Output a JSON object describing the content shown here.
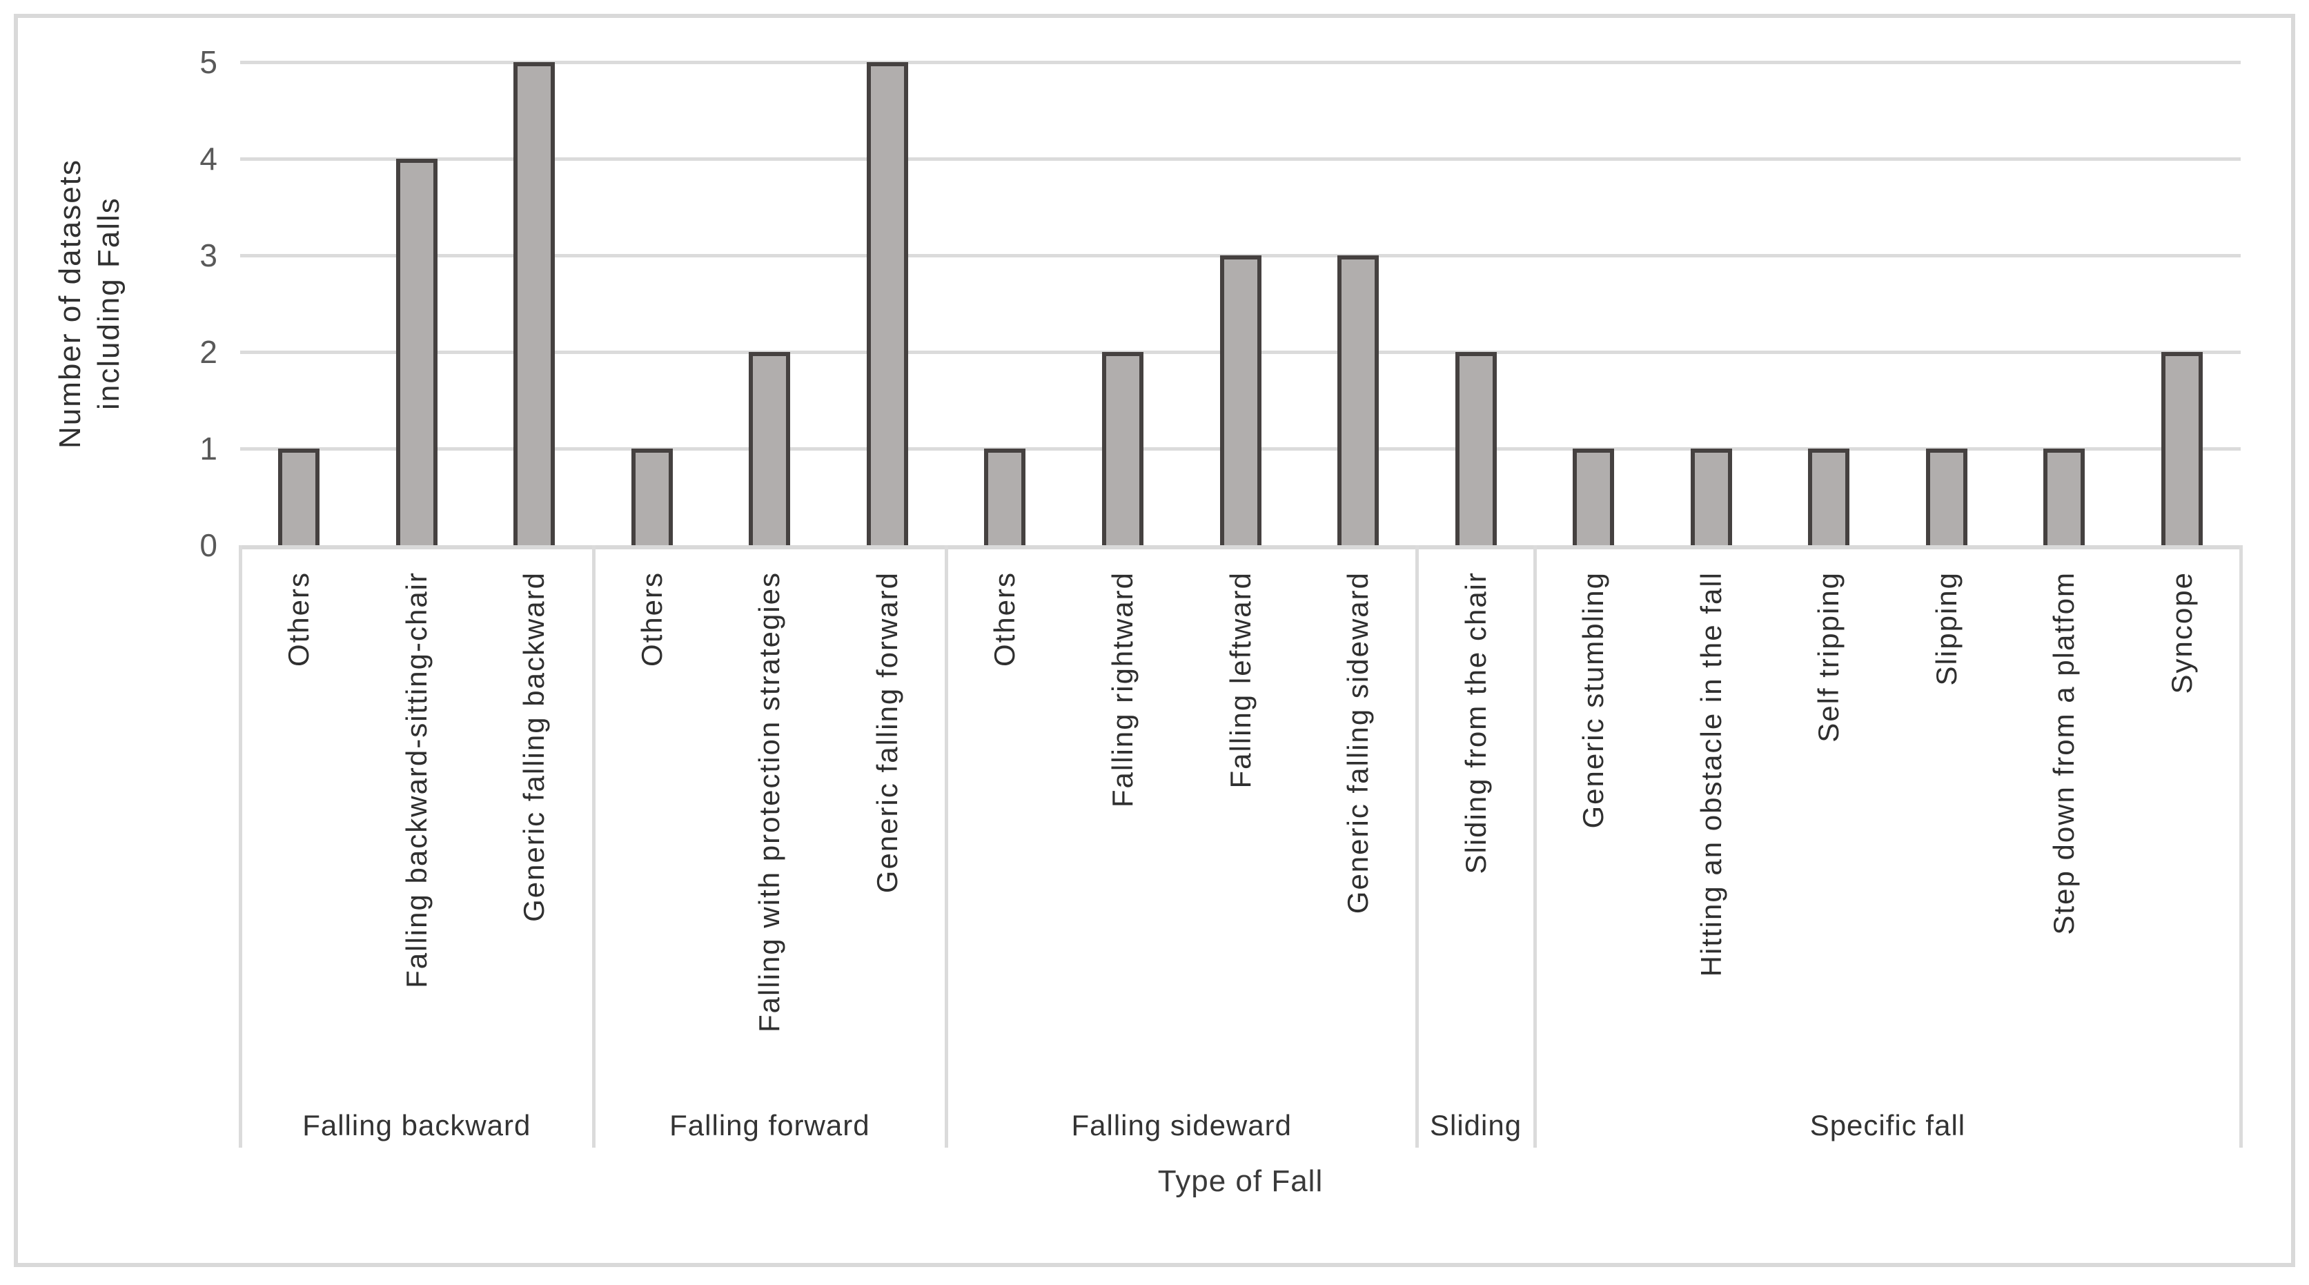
{
  "figure": {
    "background": "#FFFFFF",
    "frame_color": "#D9D9D9"
  },
  "chart_data": {
    "type": "bar",
    "title": "",
    "xlabel": "Type of Fall",
    "ylabel_lines": [
      "Number of datasets",
      "including Falls"
    ],
    "ylim": [
      0,
      5
    ],
    "yticks": [
      "0",
      "1",
      "2",
      "3",
      "4",
      "5"
    ],
    "grid": true,
    "legend": "none",
    "bar_fill": "#B1AEAD",
    "bar_border": "#454140",
    "gridline_color": "#DBDBDB",
    "tick_label_color": "#595959",
    "text_color": "#2F2F2F",
    "groups": [
      {
        "label": "Falling backward",
        "categories": [
          "Others",
          "Falling backward-sitting-chair",
          "Generic falling backward"
        ],
        "values": [
          1,
          4,
          5
        ]
      },
      {
        "label": "Falling forward",
        "categories": [
          "Others",
          "Falling with protection strategies",
          "Generic falling forward"
        ],
        "values": [
          1,
          2,
          5
        ]
      },
      {
        "label": "Falling sideward",
        "categories": [
          "Others",
          "Falling rightward",
          "Falling leftward",
          "Generic falling sideward"
        ],
        "values": [
          1,
          2,
          3,
          3
        ]
      },
      {
        "label": "Sliding",
        "categories": [
          "Sliding from the chair"
        ],
        "values": [
          2
        ]
      },
      {
        "label": "Specific fall",
        "categories": [
          "Generic stumbling",
          "Hitting an obstacle in the fall",
          "Self tripping",
          "Slipping",
          "Step down from a platfom",
          "Syncope"
        ],
        "values": [
          1,
          1,
          1,
          1,
          1,
          2
        ]
      }
    ]
  }
}
